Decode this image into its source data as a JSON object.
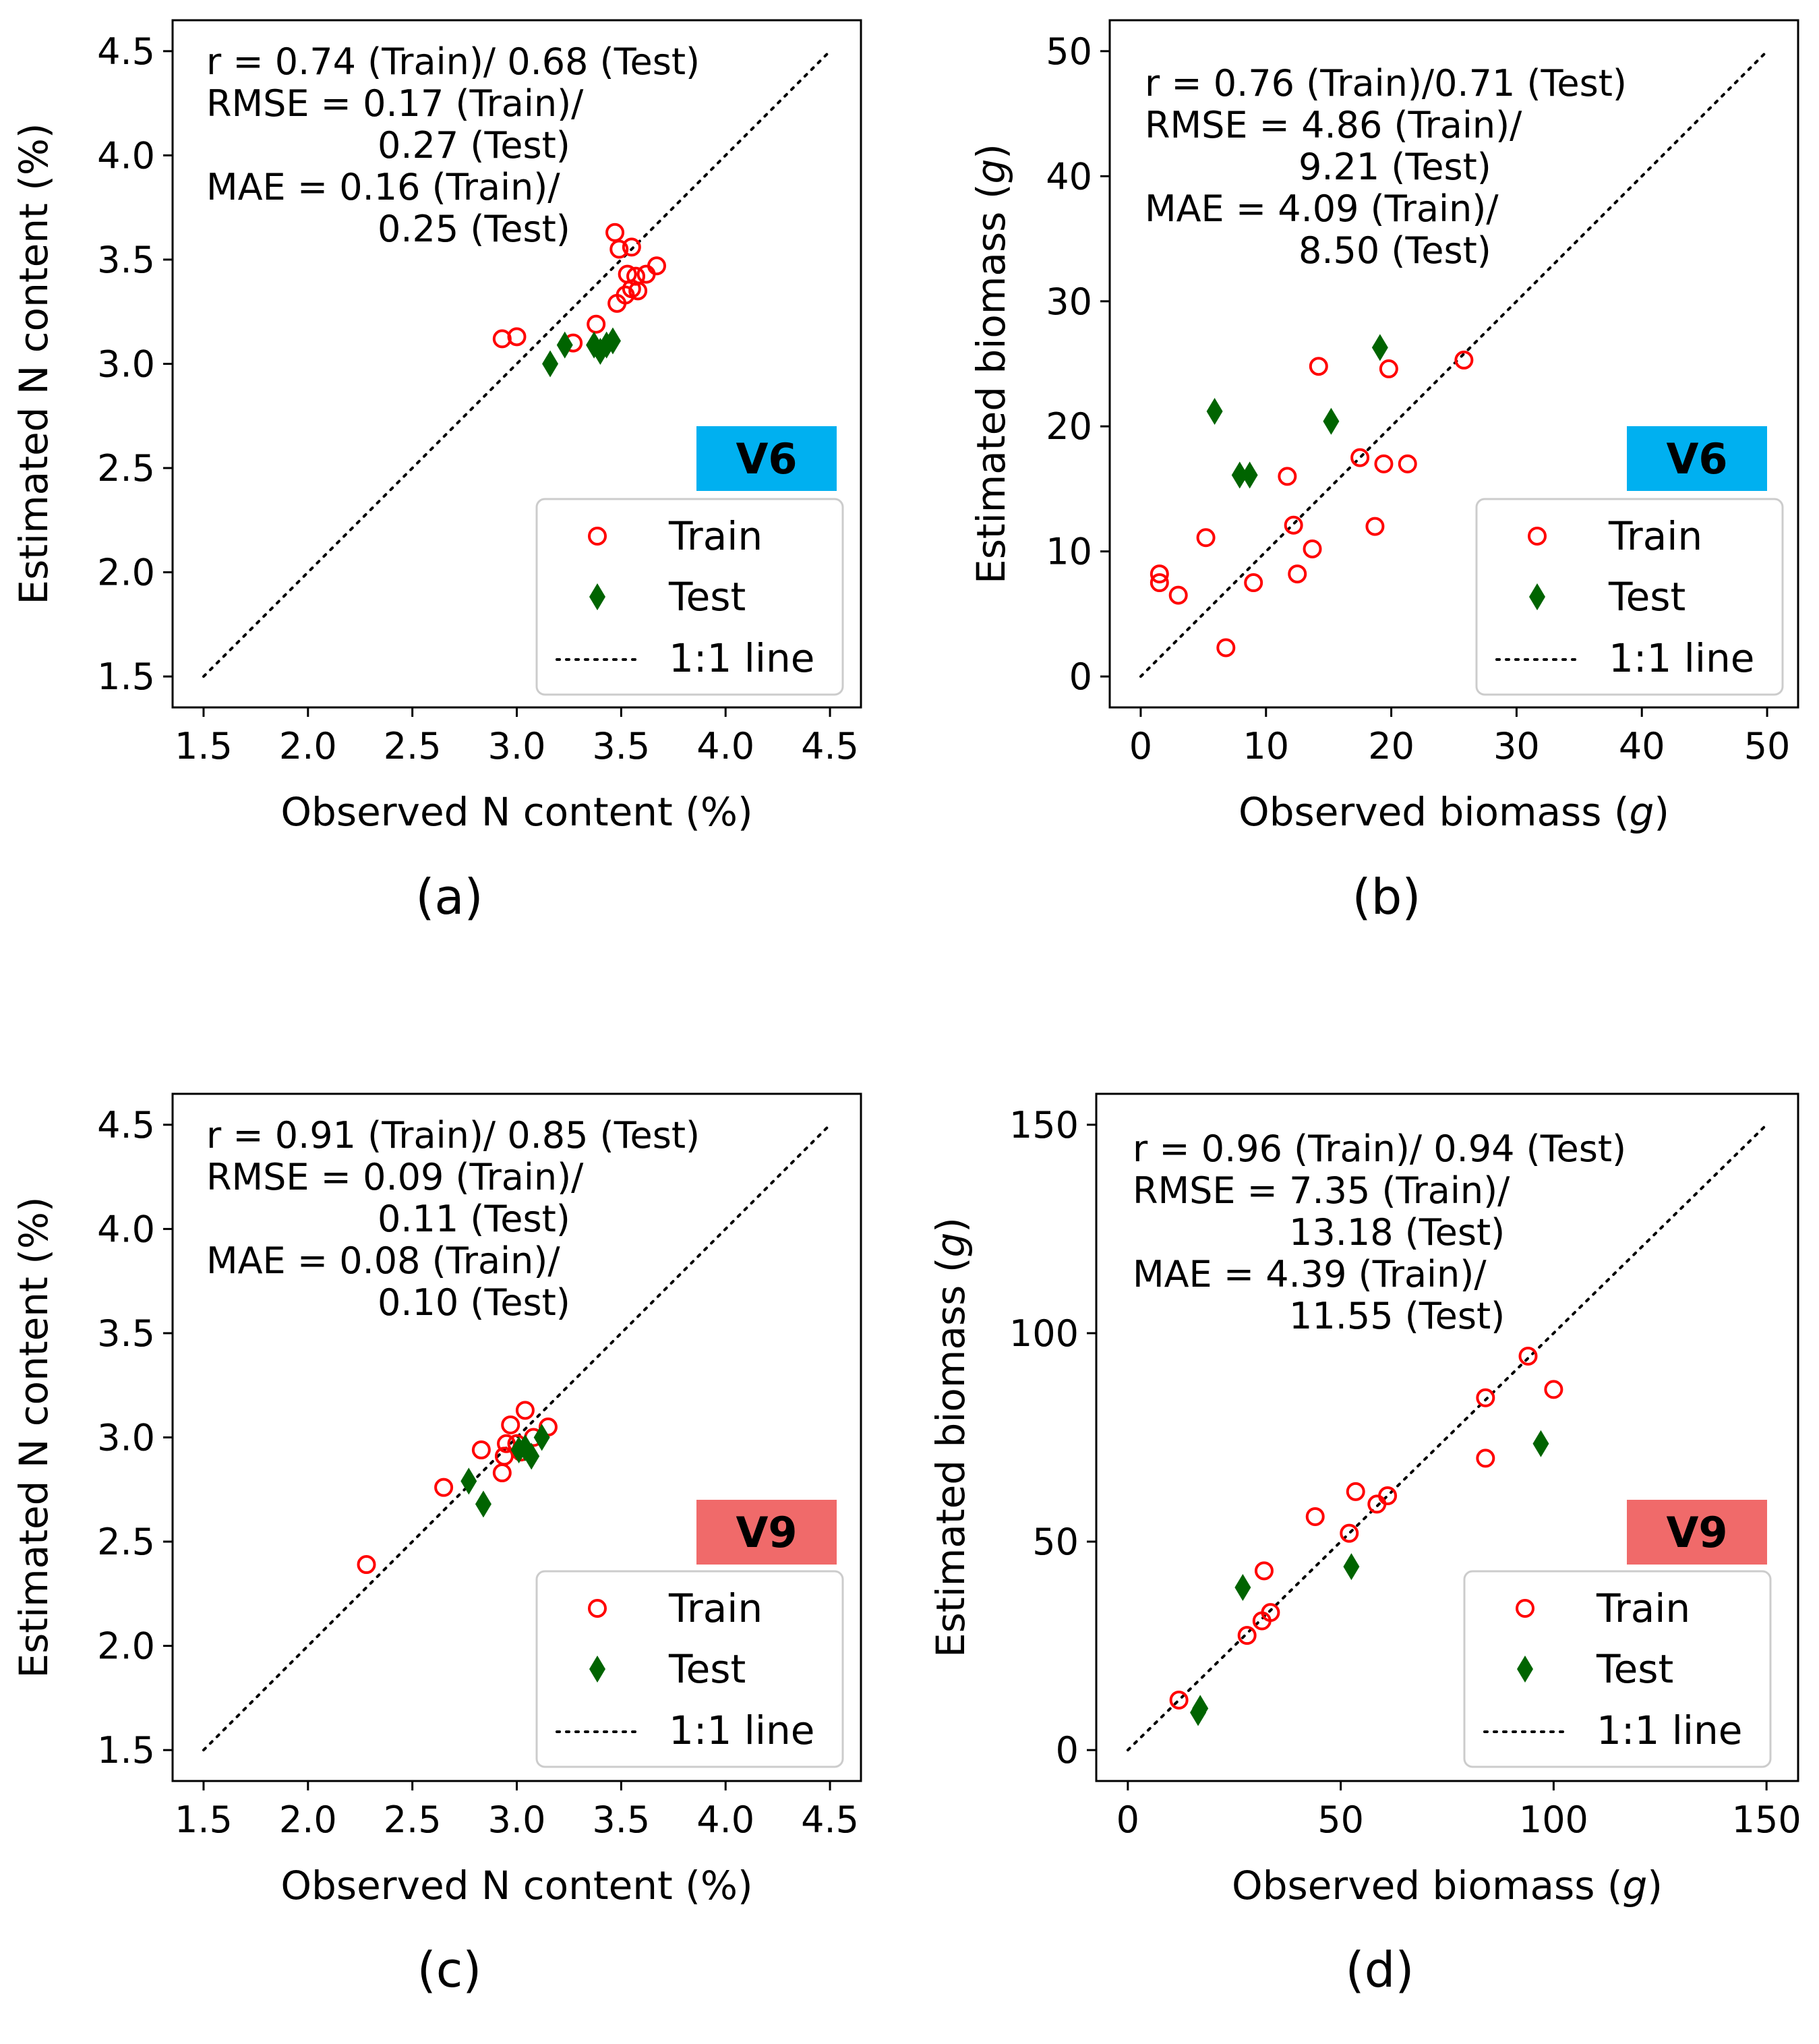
{
  "figure": {
    "legend": {
      "train": "Train",
      "test": "Test",
      "line": "1:1 line"
    },
    "colors": {
      "train": "#ff0000",
      "test": "#006400",
      "v6_badge": "#00b0f0",
      "v9_badge": "#f06a6a"
    }
  },
  "chart_data": [
    {
      "id": "a",
      "type": "scatter",
      "caption": "(a)",
      "badge": "V6",
      "xlabel": "Observed N content (%)",
      "ylabel": "Estimated N content (%)",
      "xlim": [
        1.5,
        4.5
      ],
      "ylim": [
        1.5,
        4.5
      ],
      "xticks": [
        1.5,
        2.0,
        2.5,
        3.0,
        3.5,
        4.0,
        4.5
      ],
      "yticks": [
        1.5,
        2.0,
        2.5,
        3.0,
        3.5,
        4.0,
        4.5
      ],
      "tick_decimals": 1,
      "stats": [
        "r = 0.74 (Train)/ 0.68 (Test)",
        "RMSE = 0.17 (Train)/",
        "0.27 (Test)",
        "MAE = 0.16 (Train)/",
        "0.25 (Test)"
      ],
      "series": [
        {
          "name": "Train",
          "marker": "circle",
          "points": [
            [
              2.93,
              3.12
            ],
            [
              3.0,
              3.13
            ],
            [
              3.27,
              3.1
            ],
            [
              3.38,
              3.19
            ],
            [
              3.47,
              3.63
            ],
            [
              3.49,
              3.55
            ],
            [
              3.55,
              3.56
            ],
            [
              3.53,
              3.43
            ],
            [
              3.57,
              3.42
            ],
            [
              3.62,
              3.43
            ],
            [
              3.67,
              3.47
            ],
            [
              3.55,
              3.36
            ],
            [
              3.58,
              3.35
            ],
            [
              3.52,
              3.33
            ],
            [
              3.48,
              3.29
            ]
          ]
        },
        {
          "name": "Test",
          "marker": "diamond",
          "points": [
            [
              3.16,
              3.0
            ],
            [
              3.23,
              3.09
            ],
            [
              3.37,
              3.09
            ],
            [
              3.4,
              3.06
            ],
            [
              3.43,
              3.09
            ],
            [
              3.46,
              3.11
            ]
          ]
        }
      ]
    },
    {
      "id": "b",
      "type": "scatter",
      "caption": "(b)",
      "badge": "V6",
      "xlabel": "Observed biomass (",
      "xlabel_italic": "g",
      "xlabel_end": ")",
      "ylabel": "Estimated biomass (",
      "ylabel_italic": "g",
      "ylabel_end": ")",
      "xlim": [
        0,
        50
      ],
      "ylim": [
        0,
        50
      ],
      "xticks": [
        0,
        10,
        20,
        30,
        40,
        50
      ],
      "yticks": [
        0,
        10,
        20,
        30,
        40,
        50
      ],
      "tick_decimals": 0,
      "stats": [
        "r = 0.76 (Train)/0.71 (Test)",
        "RMSE = 4.86 (Train)/",
        "9.21 (Test)",
        "MAE = 4.09 (Train)/",
        "8.50 (Test)"
      ],
      "series": [
        {
          "name": "Train",
          "marker": "circle",
          "points": [
            [
              1.5,
              8.2
            ],
            [
              1.5,
              7.5
            ],
            [
              3.0,
              6.5
            ],
            [
              5.2,
              11.1
            ],
            [
              6.8,
              2.3
            ],
            [
              9.0,
              7.5
            ],
            [
              11.7,
              16.0
            ],
            [
              12.2,
              12.1
            ],
            [
              12.5,
              8.2
            ],
            [
              13.7,
              10.2
            ],
            [
              14.2,
              24.8
            ],
            [
              17.5,
              17.5
            ],
            [
              18.7,
              12.0
            ],
            [
              19.4,
              17.0
            ],
            [
              19.8,
              24.6
            ],
            [
              21.3,
              17.0
            ],
            [
              25.8,
              25.3
            ]
          ]
        },
        {
          "name": "Test",
          "marker": "diamond",
          "points": [
            [
              5.9,
              21.2
            ],
            [
              7.9,
              16.1
            ],
            [
              8.7,
              16.1
            ],
            [
              15.2,
              20.4
            ],
            [
              19.1,
              26.3
            ]
          ]
        }
      ]
    },
    {
      "id": "c",
      "type": "scatter",
      "caption": "(c)",
      "badge": "V9",
      "xlabel": "Observed N content (%)",
      "ylabel": "Estimated N content (%)",
      "xlim": [
        1.5,
        4.5
      ],
      "ylim": [
        1.5,
        4.5
      ],
      "xticks": [
        1.5,
        2.0,
        2.5,
        3.0,
        3.5,
        4.0,
        4.5
      ],
      "yticks": [
        1.5,
        2.0,
        2.5,
        3.0,
        3.5,
        4.0,
        4.5
      ],
      "tick_decimals": 1,
      "stats": [
        "r = 0.91 (Train)/ 0.85 (Test)",
        "RMSE = 0.09 (Train)/",
        "0.11 (Test)",
        "MAE = 0.08 (Train)/",
        "0.10 (Test)"
      ],
      "series": [
        {
          "name": "Train",
          "marker": "circle",
          "points": [
            [
              2.28,
              2.39
            ],
            [
              2.65,
              2.76
            ],
            [
              2.83,
              2.94
            ],
            [
              2.93,
              2.83
            ],
            [
              2.94,
              2.91
            ],
            [
              2.95,
              2.97
            ],
            [
              2.97,
              3.06
            ],
            [
              3.0,
              2.97
            ],
            [
              3.02,
              2.93
            ],
            [
              3.04,
              3.13
            ],
            [
              3.08,
              3.0
            ],
            [
              3.15,
              3.05
            ]
          ]
        },
        {
          "name": "Test",
          "marker": "diamond",
          "points": [
            [
              2.77,
              2.79
            ],
            [
              2.84,
              2.68
            ],
            [
              3.01,
              2.94
            ],
            [
              3.04,
              2.95
            ],
            [
              3.07,
              2.91
            ],
            [
              3.12,
              3.0
            ]
          ]
        }
      ]
    },
    {
      "id": "d",
      "type": "scatter",
      "caption": "(d)",
      "badge": "V9",
      "xlabel": "Observed biomass (",
      "xlabel_italic": "g",
      "xlabel_end": ")",
      "ylabel": "Estimated biomass (",
      "ylabel_italic": "g",
      "ylabel_end": ")",
      "xlim": [
        0,
        150
      ],
      "ylim": [
        0,
        150
      ],
      "xticks": [
        0,
        50,
        100,
        150
      ],
      "yticks": [
        0,
        50,
        100,
        150
      ],
      "tick_decimals": 0,
      "stats": [
        "r = 0.96 (Train)/ 0.94 (Test)",
        "RMSE = 7.35 (Train)/",
        "13.18 (Test)",
        "MAE = 4.39 (Train)/",
        "11.55 (Test)"
      ],
      "series": [
        {
          "name": "Train",
          "marker": "circle",
          "points": [
            [
              12,
              12
            ],
            [
              28,
              27.5
            ],
            [
              31.5,
              31
            ],
            [
              32,
              43
            ],
            [
              33.5,
              33
            ],
            [
              44,
              56
            ],
            [
              52,
              52
            ],
            [
              53.5,
              62
            ],
            [
              58.5,
              59
            ],
            [
              61,
              61
            ],
            [
              84,
              84.5
            ],
            [
              84,
              70
            ],
            [
              94,
              94.5
            ],
            [
              100,
              86.5
            ]
          ]
        },
        {
          "name": "Test",
          "marker": "diamond",
          "points": [
            [
              16.5,
              9
            ],
            [
              17,
              10
            ],
            [
              27,
              39
            ],
            [
              52.5,
              44
            ],
            [
              97,
              73.5
            ]
          ]
        }
      ]
    }
  ]
}
